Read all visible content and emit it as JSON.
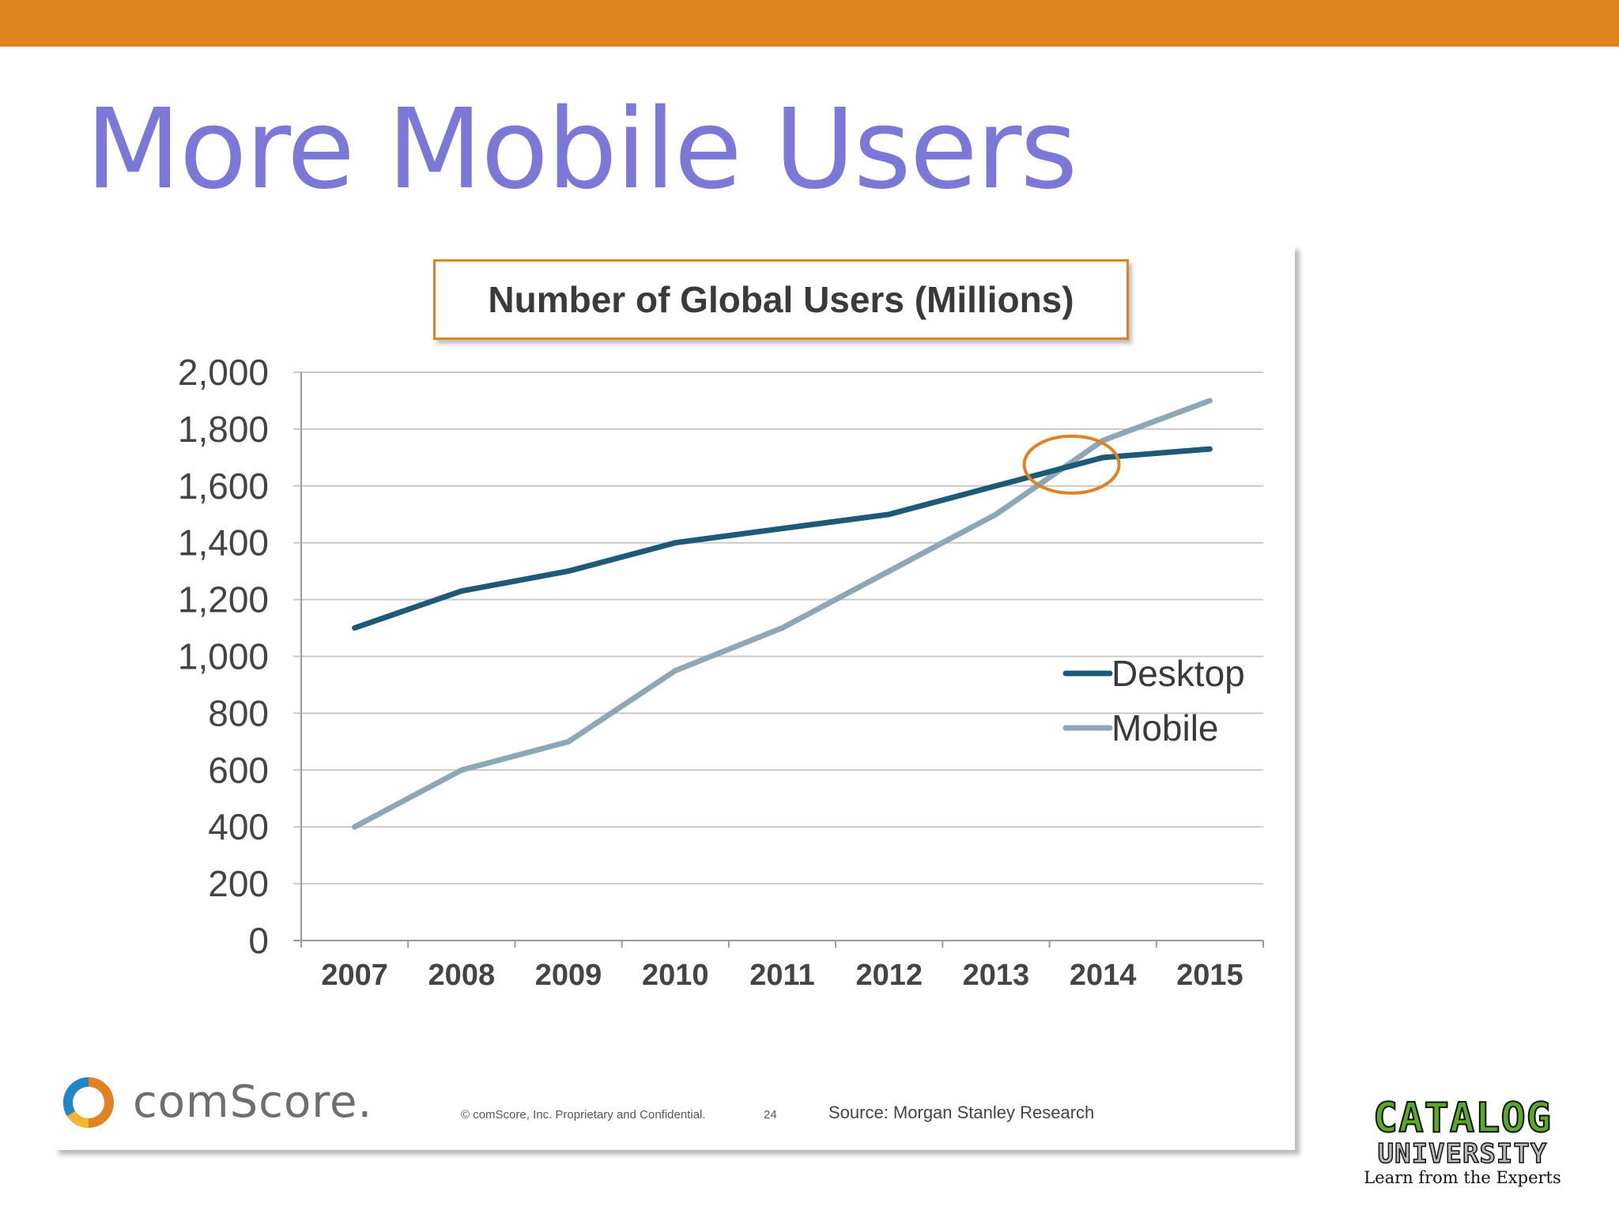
{
  "slide": {
    "title": "More Mobile Users"
  },
  "colors": {
    "top_bar": "#e0821f",
    "title": "#7c78d8",
    "desktop": "#1c5a78",
    "mobile": "#8ca7b5",
    "highlight_circle": "#e0821f",
    "gridline": "#c9c9c9"
  },
  "chart_data": {
    "type": "line",
    "title": "Number of Global Users (Millions)",
    "x": [
      "2007",
      "2008",
      "2009",
      "2010",
      "2011",
      "2012",
      "2013",
      "2014",
      "2015"
    ],
    "series": [
      {
        "name": "Desktop",
        "values": [
          1100,
          1230,
          1300,
          1400,
          1450,
          1500,
          1600,
          1700,
          1730
        ]
      },
      {
        "name": "Mobile",
        "values": [
          400,
          600,
          700,
          950,
          1100,
          1300,
          1500,
          1760,
          1900
        ]
      }
    ],
    "ylim": [
      0,
      2000
    ],
    "yticks": [
      "0",
      "200",
      "400",
      "600",
      "800",
      "1,000",
      "1,200",
      "1,400",
      "1,600",
      "1,800",
      "2,000"
    ],
    "xlabel": "",
    "ylabel": "",
    "grid": true,
    "legend": "right",
    "annotation": "circle highlighting the 2014 crossover"
  },
  "footer": {
    "logo_text": "comScore.",
    "copyright": "© comScore, Inc.  Proprietary and Confidential.",
    "page_number": "24",
    "source": "Source: Morgan Stanley Research"
  },
  "brand": {
    "line1": "CATALOG",
    "line2": "UNIVERSITY",
    "tagline": "Learn from the Experts"
  }
}
